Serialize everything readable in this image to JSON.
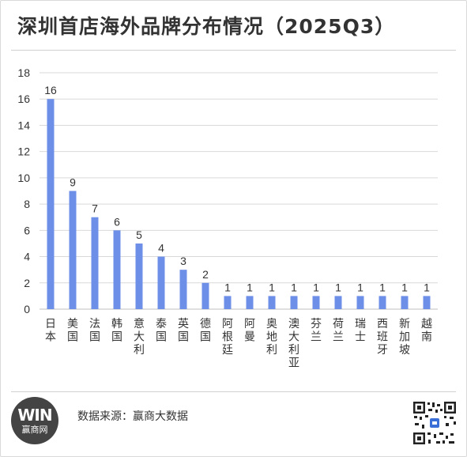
{
  "header": {
    "title": "深圳首店海外品牌分布情况（2025Q3）"
  },
  "footer": {
    "logo_name": "赢商网",
    "logo_mark": "WIN",
    "source": "数据来源：赢商大数据",
    "qr_icon": "qr-code-icon"
  },
  "colors": {
    "bar": "#6e8fe8",
    "grid": "#d9d9d9",
    "text": "#333333"
  },
  "chart_data": {
    "type": "bar",
    "title": "深圳首店海外品牌分布情况（2025Q3）",
    "xlabel": "",
    "ylabel": "",
    "ylim": [
      0,
      18
    ],
    "yticks": [
      0,
      2,
      4,
      6,
      8,
      10,
      12,
      14,
      16,
      18
    ],
    "grid": true,
    "categories": [
      "日本",
      "美国",
      "法国",
      "韩国",
      "意大利",
      "泰国",
      "英国",
      "德国",
      "阿根廷",
      "阿曼",
      "奥地利",
      "澳大利亚",
      "芬兰",
      "荷兰",
      "瑞士",
      "西班牙",
      "新加坡",
      "越南"
    ],
    "values": [
      16,
      9,
      7,
      6,
      5,
      4,
      3,
      2,
      1,
      1,
      1,
      1,
      1,
      1,
      1,
      1,
      1,
      1
    ]
  }
}
